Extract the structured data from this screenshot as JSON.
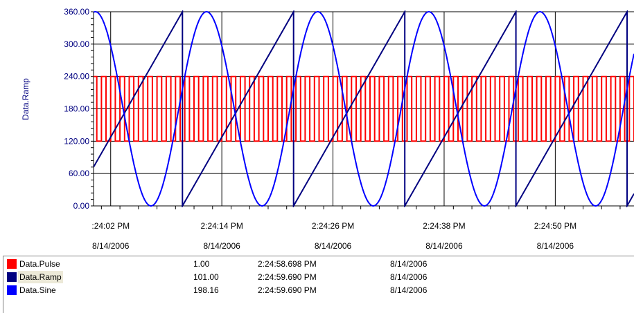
{
  "chart_data": {
    "type": "line",
    "ylabel": "Data.Ramp",
    "ylim": [
      0,
      360
    ],
    "y_ticks": [
      "0.00",
      "60.00",
      "120.00",
      "180.00",
      "240.00",
      "300.00",
      "360.00"
    ],
    "y_tick_values": [
      0,
      60,
      120,
      180,
      240,
      300,
      360
    ],
    "x_ticks": [
      {
        "time": ":24:02 PM",
        "date": "8/14/2006",
        "t": 0
      },
      {
        "time": "2:24:14 PM",
        "date": "8/14/2006",
        "t": 12
      },
      {
        "time": "2:24:26 PM",
        "date": "8/14/2006",
        "t": 24
      },
      {
        "time": "2:24:38 PM",
        "date": "8/14/2006",
        "t": 36
      },
      {
        "time": "2:24:50 PM",
        "date": "8/14/2006",
        "t": 48
      }
    ],
    "xlim": [
      -1.85,
      56.5
    ],
    "grid": true,
    "series": [
      {
        "name": "Data.Pulse",
        "color": "#ff0000",
        "kind": "pulse",
        "low": 120,
        "high": 240,
        "period": 1.0
      },
      {
        "name": "Data.Ramp",
        "color": "#000080",
        "kind": "ramp",
        "min": 0,
        "max": 360,
        "period": 12.0,
        "reset_times": [
          7.75,
          19.75,
          31.75,
          43.75,
          55.75
        ]
      },
      {
        "name": "Data.Sine",
        "color": "#0000ff",
        "kind": "sine",
        "min": 0,
        "max": 360,
        "period": 12.0,
        "peak_times": [
          -1.65,
          10.35,
          22.35,
          34.35,
          46.35
        ]
      }
    ]
  },
  "legend": {
    "rows": [
      {
        "name": "Data.Pulse",
        "color": "#ff0000",
        "value": "1.00",
        "time": "2:24:58.698 PM",
        "date": "8/14/2006"
      },
      {
        "name": "Data.Ramp",
        "color": "#000080",
        "value": "101.00",
        "time": "2:24:59.690 PM",
        "date": "8/14/2006"
      },
      {
        "name": "Data.Sine",
        "color": "#0000ff",
        "value": "198.16",
        "time": "2:24:59.690 PM",
        "date": "8/14/2006"
      }
    ]
  }
}
